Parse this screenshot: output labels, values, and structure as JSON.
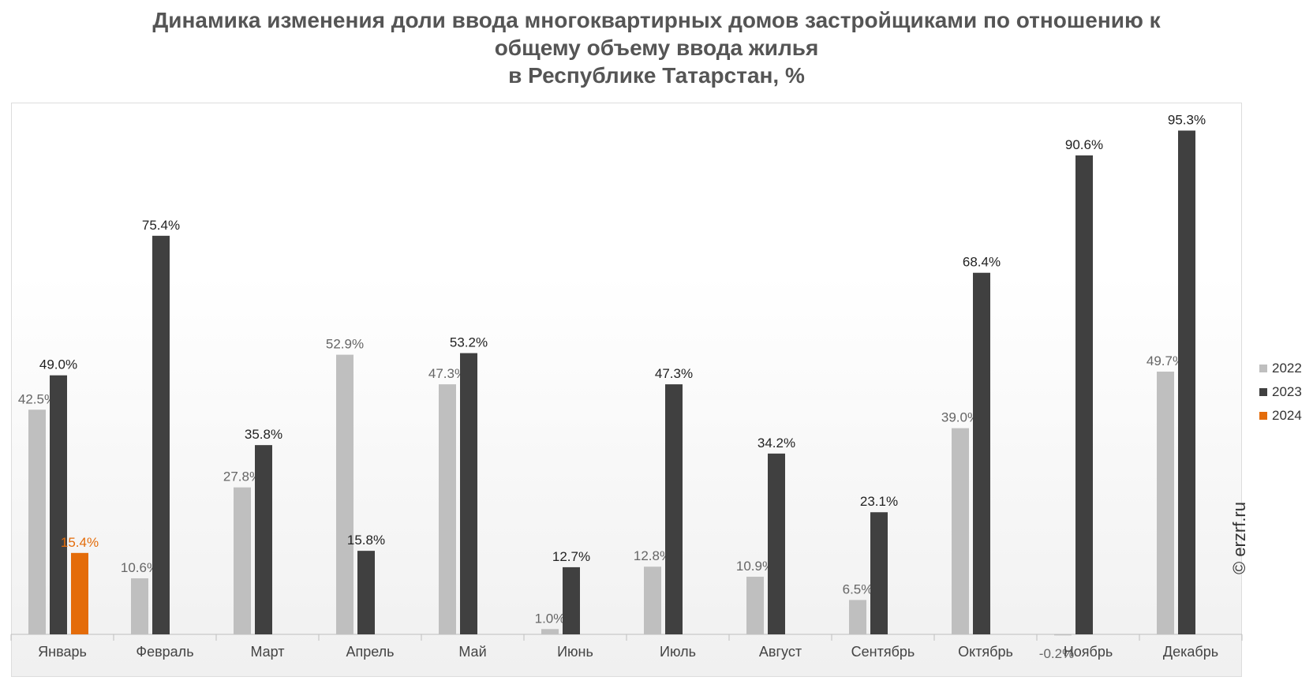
{
  "title": {
    "line1": "Динамика изменения доли ввода многоквартирных домов застройщиками по отношению к",
    "line2": "общему объему ввода жилья",
    "line3": "в Республике Татарстан, %"
  },
  "watermark": "© erzrf.ru",
  "colors": {
    "2022": "#bfbfbf",
    "2023": "#404040",
    "2024": "#e46c0a",
    "label_2022": "#666666",
    "label_2023": "#222222",
    "label_2024": "#e46c0a"
  },
  "chart_data": {
    "type": "bar",
    "categories": [
      "Январь",
      "Февраль",
      "Март",
      "Апрель",
      "Май",
      "Июнь",
      "Июль",
      "Август",
      "Сентябрь",
      "Октябрь",
      "Ноябрь",
      "Декабрь"
    ],
    "series": [
      {
        "name": "2022",
        "values": [
          42.5,
          10.6,
          27.8,
          52.9,
          47.3,
          1.0,
          12.8,
          10.9,
          6.5,
          39.0,
          -0.2,
          49.7
        ],
        "labels": [
          "42.5%",
          "10.6%",
          "27.8%",
          "52.9%",
          "47.3%",
          "1.0%",
          "12.8%",
          "10.9%",
          "6.5%",
          "39.0%",
          "-0.2%",
          "49.7%"
        ]
      },
      {
        "name": "2023",
        "values": [
          49.0,
          75.4,
          35.8,
          15.8,
          53.2,
          12.7,
          47.3,
          34.2,
          23.1,
          68.4,
          90.6,
          95.3
        ],
        "labels": [
          "49.0%",
          "75.4%",
          "35.8%",
          "15.8%",
          "53.2%",
          "12.7%",
          "47.3%",
          "34.2%",
          "23.1%",
          "68.4%",
          "90.6%",
          "95.3%"
        ]
      },
      {
        "name": "2024",
        "values": [
          15.4,
          null,
          null,
          null,
          null,
          null,
          null,
          null,
          null,
          null,
          null,
          null
        ],
        "labels": [
          "15.4%",
          "",
          "",
          "",
          "",
          "",
          "",
          "",
          "",
          "",
          "",
          ""
        ]
      }
    ],
    "title": "Динамика изменения доли ввода многоквартирных домов застройщиками по отношению к общему объему ввода жилья в Республике Татарстан, %",
    "xlabel": "",
    "ylabel": "",
    "ylim": [
      -0.2,
      100
    ],
    "grid": false,
    "legend": "right"
  }
}
